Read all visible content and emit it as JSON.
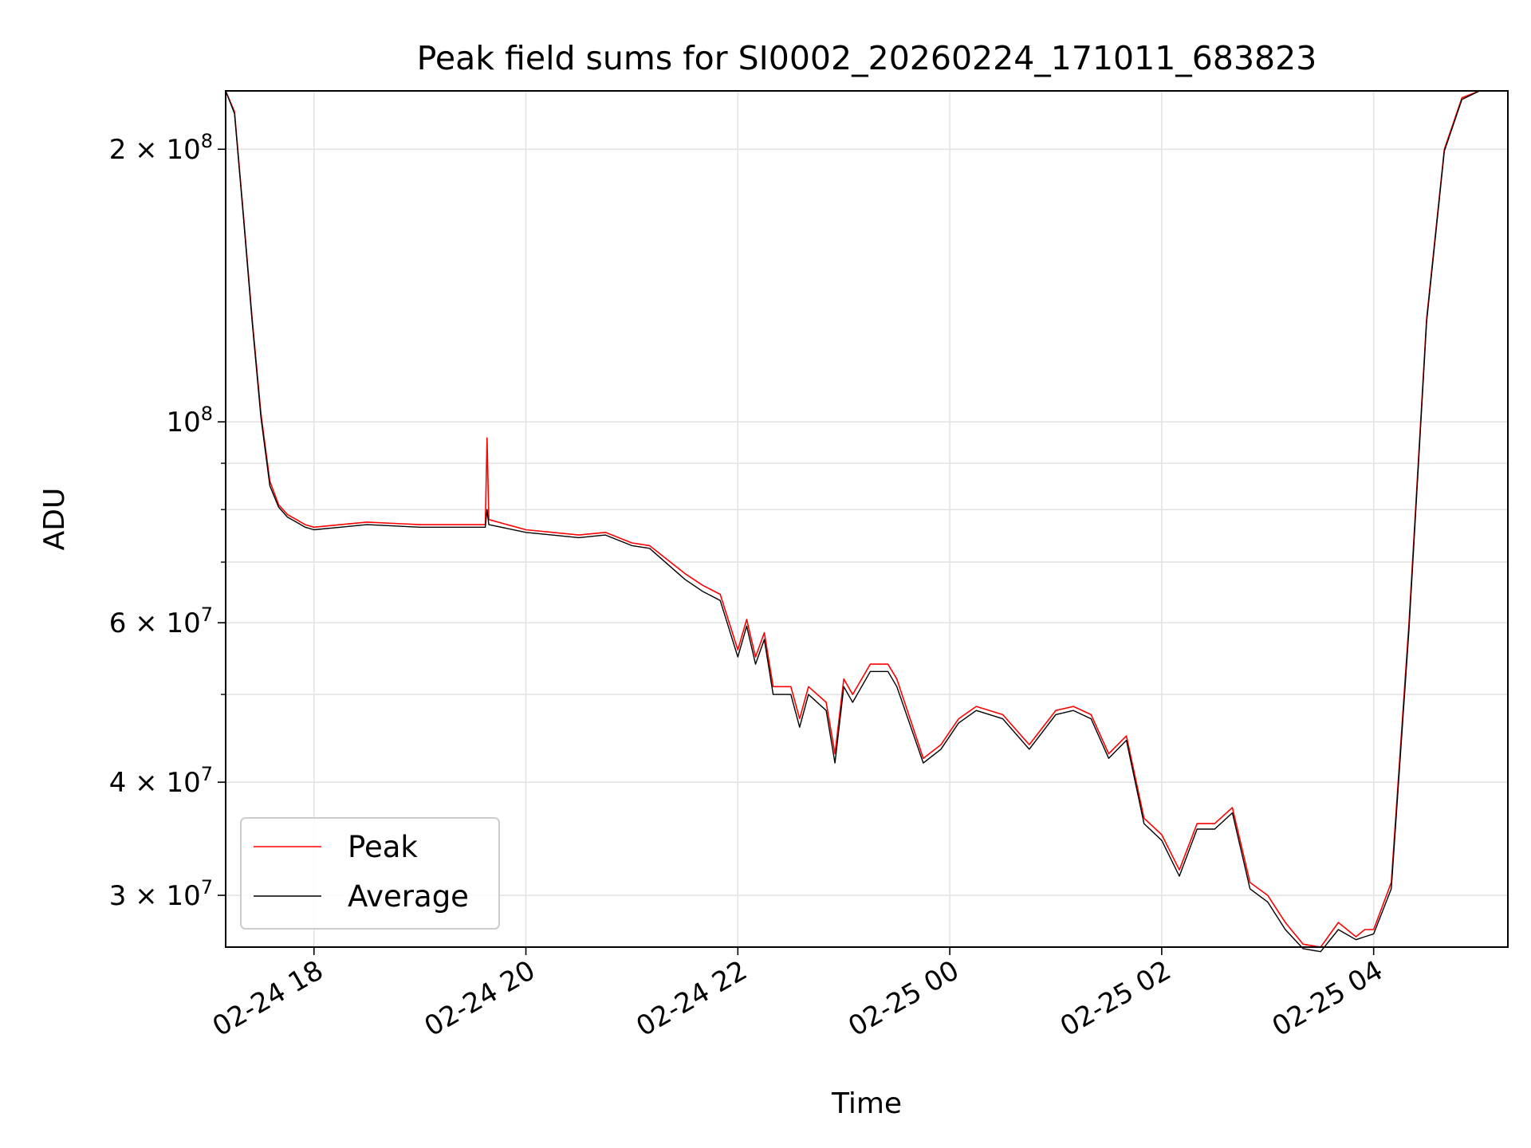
{
  "chart_data": {
    "type": "line",
    "title": "Peak field sums for SI0002_20260224_171011_683823",
    "xlabel": "Time",
    "ylabel": "ADU",
    "yscale": "log",
    "grid": true,
    "legend_position": "lower-left",
    "xlim": [
      "2026-02-24 17:10",
      "2026-02-25 05:16"
    ],
    "ylim": [
      26300000,
      232000000
    ],
    "x_ticks": [
      {
        "value": "2026-02-24 18:00",
        "label": "02-24 18"
      },
      {
        "value": "2026-02-24 20:00",
        "label": "02-24 20"
      },
      {
        "value": "2026-02-24 22:00",
        "label": "02-24 22"
      },
      {
        "value": "2026-02-25 00:00",
        "label": "02-25 00"
      },
      {
        "value": "2026-02-25 02:00",
        "label": "02-25 02"
      },
      {
        "value": "2026-02-25 04:00",
        "label": "02-25 04"
      }
    ],
    "y_major_ticks": [
      {
        "value": 30000000,
        "base": "3 × 10",
        "exp": "7"
      },
      {
        "value": 40000000,
        "base": "4 × 10",
        "exp": "7"
      },
      {
        "value": 60000000,
        "base": "6 × 10",
        "exp": "7"
      },
      {
        "value": 100000000,
        "base": "10",
        "exp": "8"
      },
      {
        "value": 200000000,
        "base": "2 × 10",
        "exp": "8"
      }
    ],
    "y_minor_ticks": [
      50000000,
      70000000,
      80000000,
      90000000
    ],
    "series": [
      {
        "name": "Peak",
        "color": "#ff0000",
        "x": [
          "2026-02-24 17:10",
          "2026-02-24 17:15",
          "2026-02-24 17:20",
          "2026-02-24 17:25",
          "2026-02-24 17:30",
          "2026-02-24 17:35",
          "2026-02-24 17:40",
          "2026-02-24 17:45",
          "2026-02-24 17:50",
          "2026-02-24 17:55",
          "2026-02-24 18:00",
          "2026-02-24 18:15",
          "2026-02-24 18:30",
          "2026-02-24 19:00",
          "2026-02-24 19:37",
          "2026-02-24 19:38",
          "2026-02-24 19:39",
          "2026-02-24 20:00",
          "2026-02-24 20:30",
          "2026-02-24 20:45",
          "2026-02-24 21:00",
          "2026-02-24 21:10",
          "2026-02-24 21:30",
          "2026-02-24 21:40",
          "2026-02-24 21:50",
          "2026-02-24 22:00",
          "2026-02-24 22:05",
          "2026-02-24 22:10",
          "2026-02-24 22:15",
          "2026-02-24 22:20",
          "2026-02-24 22:30",
          "2026-02-24 22:35",
          "2026-02-24 22:40",
          "2026-02-24 22:50",
          "2026-02-24 22:55",
          "2026-02-24 23:00",
          "2026-02-24 23:05",
          "2026-02-24 23:15",
          "2026-02-24 23:25",
          "2026-02-24 23:30",
          "2026-02-24 23:45",
          "2026-02-24 23:55",
          "2026-02-25 00:05",
          "2026-02-25 00:15",
          "2026-02-25 00:30",
          "2026-02-25 00:45",
          "2026-02-25 01:00",
          "2026-02-25 01:10",
          "2026-02-25 01:20",
          "2026-02-25 01:30",
          "2026-02-25 01:40",
          "2026-02-25 01:50",
          "2026-02-25 02:00",
          "2026-02-25 02:10",
          "2026-02-25 02:20",
          "2026-02-25 02:30",
          "2026-02-25 02:40",
          "2026-02-25 02:50",
          "2026-02-25 03:00",
          "2026-02-25 03:10",
          "2026-02-25 03:20",
          "2026-02-25 03:30",
          "2026-02-25 03:40",
          "2026-02-25 03:50",
          "2026-02-25 03:55",
          "2026-02-25 04:00",
          "2026-02-25 04:10",
          "2026-02-25 04:20",
          "2026-02-25 04:30",
          "2026-02-25 04:40",
          "2026-02-25 04:50",
          "2026-02-25 05:00",
          "2026-02-25 05:10",
          "2026-02-25 05:16"
        ],
        "values": [
          232000000,
          220000000,
          170000000,
          130000000,
          102000000,
          86000000,
          81000000,
          79000000,
          78000000,
          77000000,
          76500000,
          77000000,
          77500000,
          77000000,
          77000000,
          96000000,
          78000000,
          76000000,
          75000000,
          75500000,
          73500000,
          73000000,
          68000000,
          66000000,
          64500000,
          56000000,
          60500000,
          55000000,
          58500000,
          51000000,
          51000000,
          47000000,
          51000000,
          49000000,
          43000000,
          52000000,
          50000000,
          54000000,
          54000000,
          52000000,
          42500000,
          44000000,
          47000000,
          48500000,
          47500000,
          44000000,
          48000000,
          48500000,
          47500000,
          43000000,
          45000000,
          36500000,
          35000000,
          32000000,
          36000000,
          36000000,
          37500000,
          31000000,
          30000000,
          28000000,
          26500000,
          26300000,
          28000000,
          27000000,
          27500000,
          27500000,
          31000000,
          60000000,
          130000000,
          200000000,
          228000000,
          232000000,
          232000000,
          232000000
        ]
      },
      {
        "name": "Average",
        "color": "#000000",
        "x": [
          "2026-02-24 17:10",
          "2026-02-24 17:15",
          "2026-02-24 17:20",
          "2026-02-24 17:25",
          "2026-02-24 17:30",
          "2026-02-24 17:35",
          "2026-02-24 17:40",
          "2026-02-24 17:45",
          "2026-02-24 17:50",
          "2026-02-24 17:55",
          "2026-02-24 18:00",
          "2026-02-24 18:15",
          "2026-02-24 18:30",
          "2026-02-24 19:00",
          "2026-02-24 19:37",
          "2026-02-24 19:38",
          "2026-02-24 19:39",
          "2026-02-24 20:00",
          "2026-02-24 20:30",
          "2026-02-24 20:45",
          "2026-02-24 21:00",
          "2026-02-24 21:10",
          "2026-02-24 21:30",
          "2026-02-24 21:40",
          "2026-02-24 21:50",
          "2026-02-24 22:00",
          "2026-02-24 22:05",
          "2026-02-24 22:10",
          "2026-02-24 22:15",
          "2026-02-24 22:20",
          "2026-02-24 22:30",
          "2026-02-24 22:35",
          "2026-02-24 22:40",
          "2026-02-24 22:50",
          "2026-02-24 22:55",
          "2026-02-24 23:00",
          "2026-02-24 23:05",
          "2026-02-24 23:15",
          "2026-02-24 23:25",
          "2026-02-24 23:30",
          "2026-02-24 23:45",
          "2026-02-24 23:55",
          "2026-02-25 00:05",
          "2026-02-25 00:15",
          "2026-02-25 00:30",
          "2026-02-25 00:45",
          "2026-02-25 01:00",
          "2026-02-25 01:10",
          "2026-02-25 01:20",
          "2026-02-25 01:30",
          "2026-02-25 01:40",
          "2026-02-25 01:50",
          "2026-02-25 02:00",
          "2026-02-25 02:10",
          "2026-02-25 02:20",
          "2026-02-25 02:30",
          "2026-02-25 02:40",
          "2026-02-25 02:50",
          "2026-02-25 03:00",
          "2026-02-25 03:10",
          "2026-02-25 03:20",
          "2026-02-25 03:30",
          "2026-02-25 03:40",
          "2026-02-25 03:50",
          "2026-02-25 03:55",
          "2026-02-25 04:00",
          "2026-02-25 04:10",
          "2026-02-25 04:20",
          "2026-02-25 04:30",
          "2026-02-25 04:40",
          "2026-02-25 04:50",
          "2026-02-25 05:00",
          "2026-02-25 05:10",
          "2026-02-25 05:16"
        ],
        "values": [
          232000000,
          219000000,
          169000000,
          129000000,
          101000000,
          85000000,
          80500000,
          78500000,
          77500000,
          76500000,
          76000000,
          76500000,
          77000000,
          76500000,
          76500000,
          80000000,
          77000000,
          75500000,
          74500000,
          75000000,
          73000000,
          72500000,
          67000000,
          65000000,
          63500000,
          55000000,
          59500000,
          54000000,
          57500000,
          50000000,
          50000000,
          46000000,
          50000000,
          48000000,
          42000000,
          51000000,
          49000000,
          53000000,
          53000000,
          51000000,
          42000000,
          43500000,
          46500000,
          48000000,
          47000000,
          43500000,
          47500000,
          48000000,
          47000000,
          42500000,
          44500000,
          36000000,
          34500000,
          31500000,
          35500000,
          35500000,
          37000000,
          30500000,
          29500000,
          27500000,
          26200000,
          26000000,
          27500000,
          26800000,
          27000000,
          27200000,
          30500000,
          59000000,
          129000000,
          199000000,
          227000000,
          232000000,
          232000000,
          232000000
        ]
      }
    ]
  }
}
